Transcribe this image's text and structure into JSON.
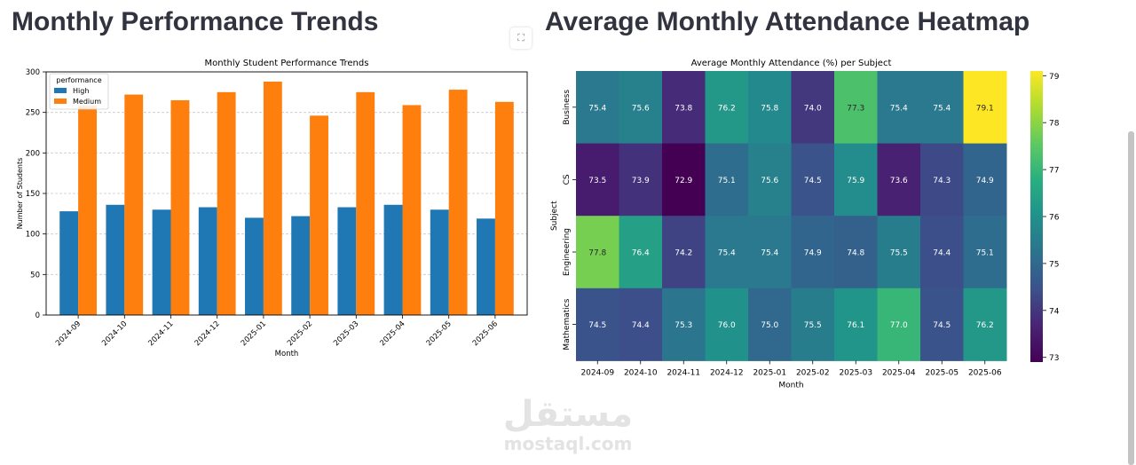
{
  "left_panel": {
    "page_title": "Monthly Performance Trends"
  },
  "right_panel": {
    "page_title": "Average Monthly Attendance Heatmap"
  },
  "expand_icon": "expand-icon",
  "watermark": {
    "arabic": "مستقل",
    "latin": "mostaql.com"
  },
  "colors": {
    "high": "#1f77b4",
    "medium": "#ff7f0e",
    "title_text": "#31333f"
  },
  "chart_data": [
    {
      "type": "bar",
      "title": "Monthly Student Performance Trends",
      "xlabel": "Month",
      "ylabel": "Number of Students",
      "categories": [
        "2024-09",
        "2024-10",
        "2024-11",
        "2024-12",
        "2025-01",
        "2025-02",
        "2025-03",
        "2025-04",
        "2025-05",
        "2025-06"
      ],
      "series": [
        {
          "name": "High",
          "values": [
            128,
            136,
            130,
            133,
            120,
            122,
            133,
            136,
            130,
            119
          ]
        },
        {
          "name": "Medium",
          "values": [
            258,
            272,
            265,
            275,
            288,
            246,
            275,
            259,
            278,
            263
          ]
        }
      ],
      "legend_title": "performance",
      "legend_position": "top-left",
      "ylim": [
        0,
        300
      ],
      "yticks": [
        0,
        50,
        100,
        150,
        200,
        250,
        300
      ],
      "grid": "y"
    },
    {
      "type": "heatmap",
      "title": "Average Monthly Attendance (%) per Subject",
      "xlabel": "Month",
      "ylabel": "Subject",
      "x": [
        "2024-09",
        "2024-10",
        "2024-11",
        "2024-12",
        "2025-01",
        "2025-02",
        "2025-03",
        "2025-04",
        "2025-05",
        "2025-06"
      ],
      "y": [
        "Business",
        "CS",
        "Engineering",
        "Mathematics"
      ],
      "values": [
        [
          75.4,
          75.6,
          73.8,
          76.2,
          75.8,
          74.0,
          77.3,
          75.4,
          75.4,
          79.1
        ],
        [
          73.5,
          73.9,
          72.9,
          75.1,
          75.6,
          74.5,
          75.9,
          73.6,
          74.3,
          74.9
        ],
        [
          77.8,
          76.4,
          74.2,
          75.4,
          75.4,
          74.9,
          74.8,
          75.5,
          74.4,
          75.1
        ],
        [
          74.5,
          74.4,
          75.3,
          76.0,
          75.0,
          75.5,
          76.1,
          77.0,
          74.5,
          76.2
        ]
      ],
      "colormap": "viridis",
      "vmin": 72.9,
      "vmax": 79.1,
      "colorbar_ticks": [
        73,
        74,
        75,
        76,
        77,
        78,
        79
      ]
    }
  ]
}
